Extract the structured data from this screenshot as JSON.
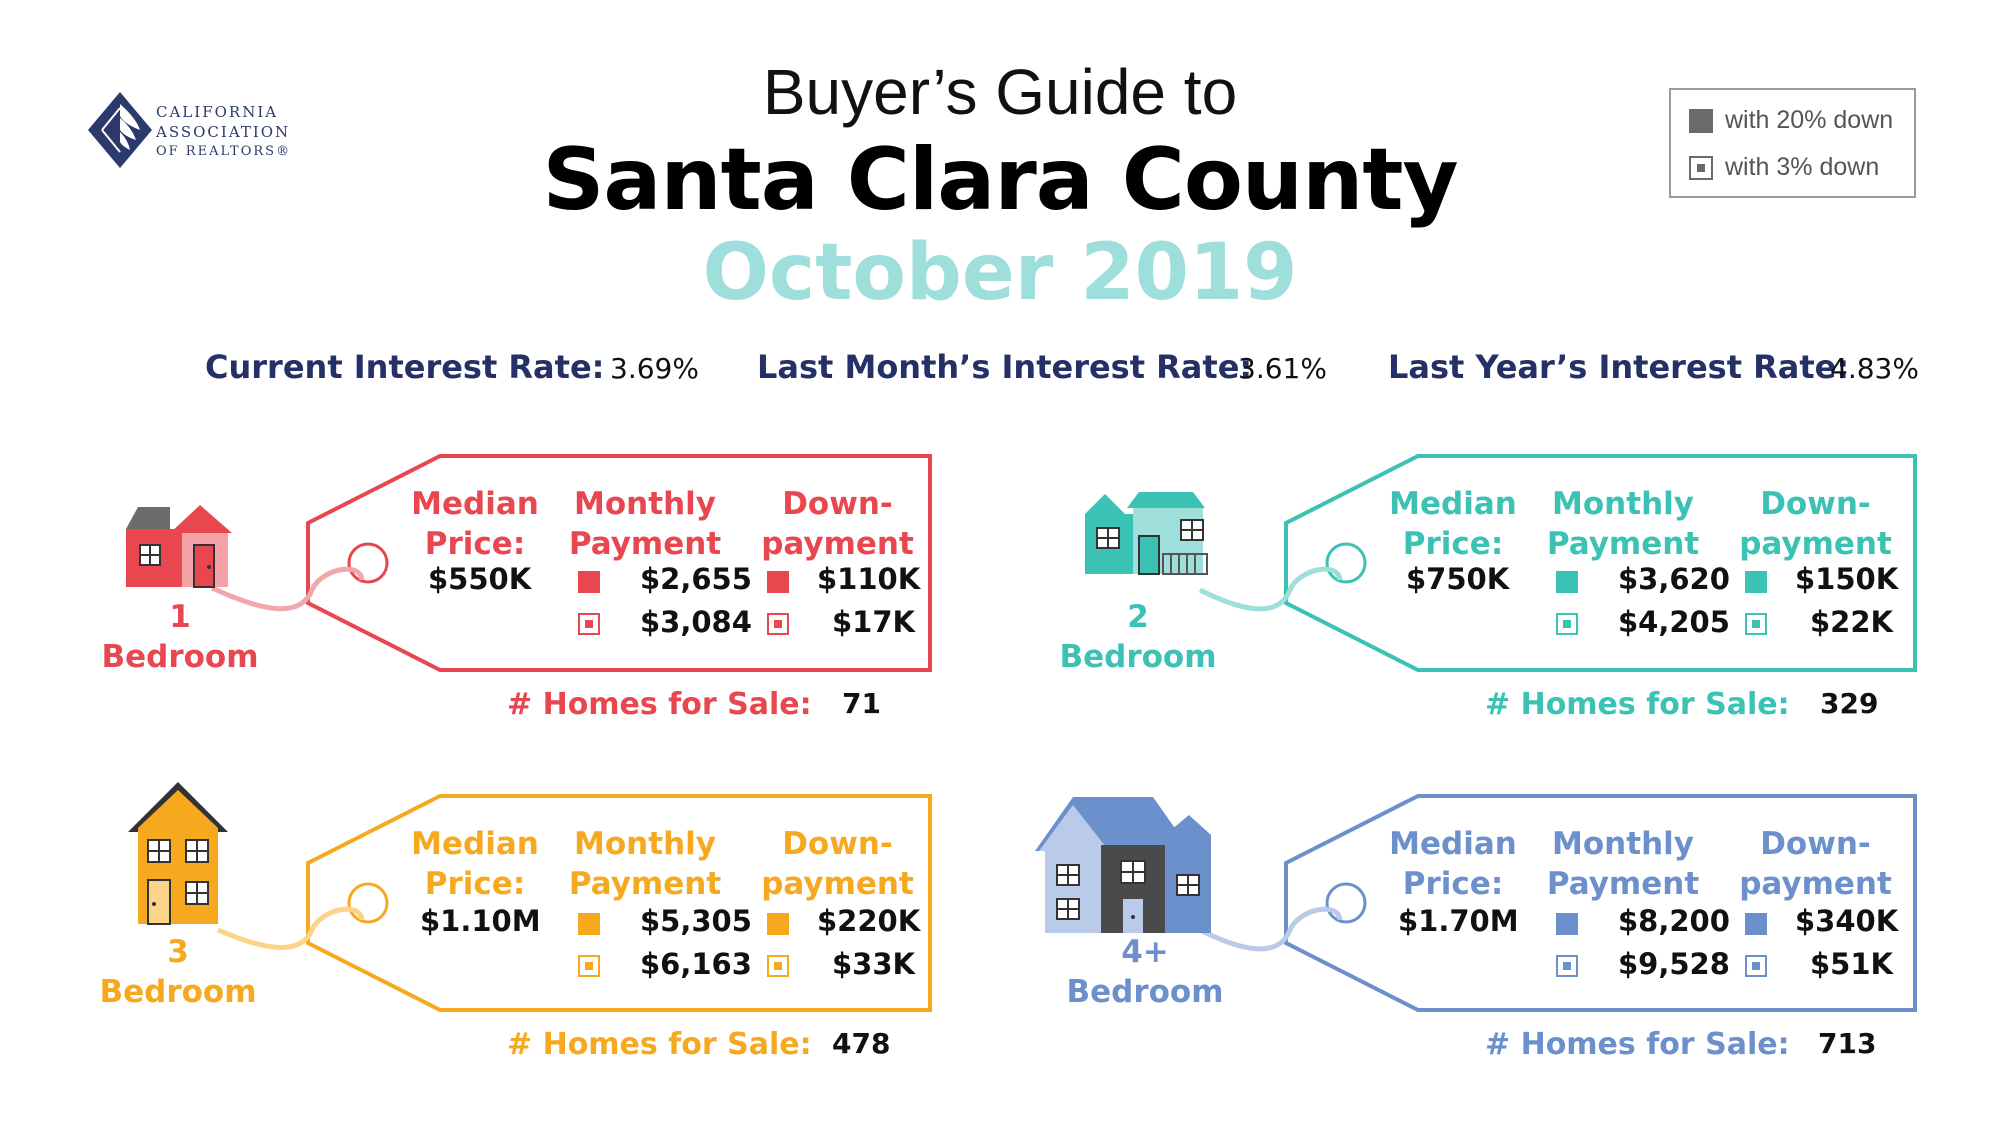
{
  "logo": {
    "lines": [
      "CALIFORNIA",
      "ASSOCIATION",
      "OF REALTORS®"
    ]
  },
  "title": {
    "line1": "Buyer’s Guide to",
    "line2": "Santa Clara County",
    "line3": "October 2019"
  },
  "legend": {
    "solid": "with 20% down",
    "open": "with 3% down"
  },
  "rates": {
    "current_label": "Current Interest Rate:",
    "current_value": "3.69%",
    "last_month_label": "Last Month’s Interest Rate:",
    "last_month_value": "3.61%",
    "last_year_label": "Last Year’s Interest Rate:",
    "last_year_value": "4.83%"
  },
  "headers": {
    "median": "Median Price:",
    "monthly": "Monthly Payment",
    "down": "Down-payment"
  },
  "homes_label": "# Homes for Sale:",
  "bedroom_word": "Bedroom",
  "colors": {
    "red": "#e8474f",
    "teal": "#3cc1b5",
    "orange": "#f6a91f",
    "blue": "#6c90cb",
    "navy": "#243066"
  },
  "cards": [
    {
      "num": "1",
      "price": "$550K",
      "pay20": "$2,655",
      "pay3": "$3,084",
      "down20": "$110K",
      "down3": "$17K",
      "homes": "71"
    },
    {
      "num": "2",
      "price": "$750K",
      "pay20": "$3,620",
      "pay3": "$4,205",
      "down20": "$150K",
      "down3": "$22K",
      "homes": "329"
    },
    {
      "num": "3",
      "price": "$1.10M",
      "pay20": "$5,305",
      "pay3": "$6,163",
      "down20": "$220K",
      "down3": "$33K",
      "homes": "478"
    },
    {
      "num": "4+",
      "price": "$1.70M",
      "pay20": "$8,200",
      "pay3": "$9,528",
      "down20": "$340K",
      "down3": "$51K",
      "homes": "713"
    }
  ]
}
